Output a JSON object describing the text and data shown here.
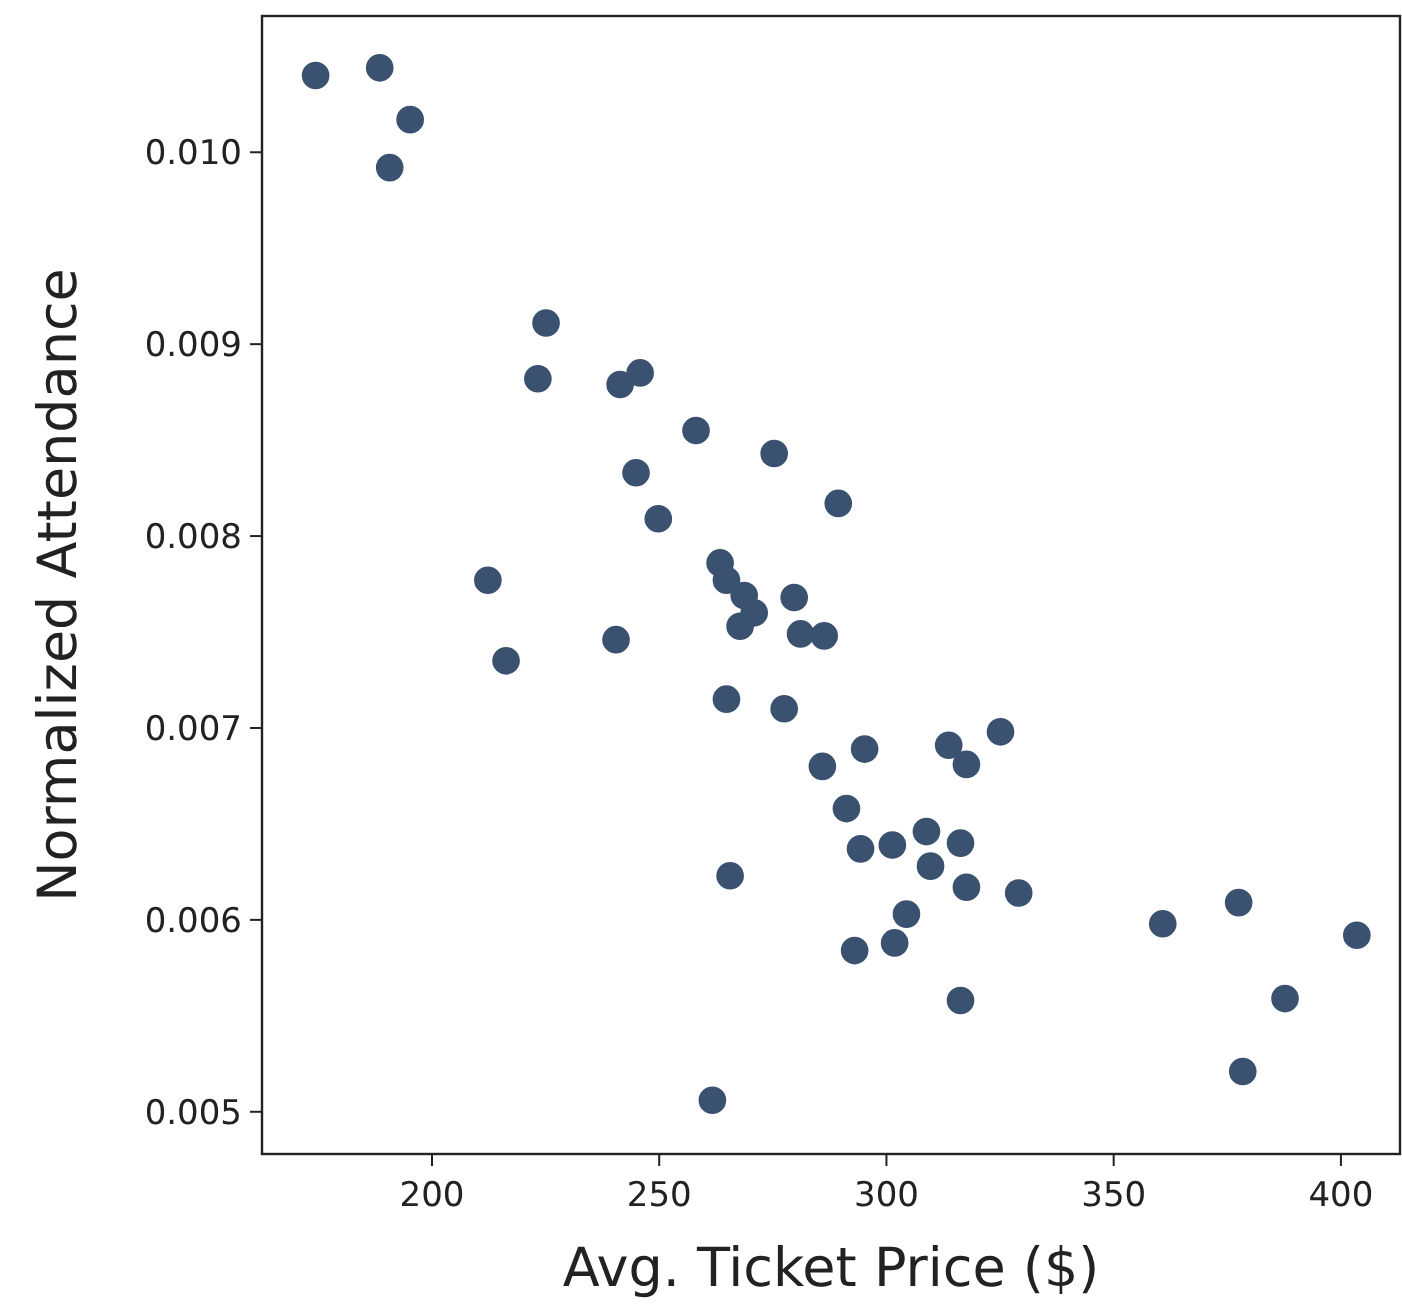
{
  "chart_data": {
    "type": "scatter",
    "xlabel": "Avg. Ticket Price ($)",
    "ylabel": "Normalized Attendance",
    "xlim": [
      162.6,
      413
    ],
    "ylim": [
      0.00478,
      0.01071
    ],
    "xticks": [
      200,
      250,
      300,
      350,
      400
    ],
    "yticks": [
      {
        "value": 0.005,
        "label": "0.005"
      },
      {
        "value": 0.006,
        "label": "0.006"
      },
      {
        "value": 0.007,
        "label": "0.007"
      },
      {
        "value": 0.008,
        "label": "0.008"
      },
      {
        "value": 0.009,
        "label": "0.009"
      },
      {
        "value": 0.01,
        "label": "0.010"
      }
    ],
    "grid": false,
    "marker": "circle",
    "series": [
      {
        "color": "#3b5170",
        "x": [
          174.4,
          188.5,
          195.2,
          190.7,
          225.1,
          223.3,
          241.4,
          245.8,
          258.1,
          244.9,
          275.3,
          249.8,
          289.4,
          212.3,
          216.3,
          240.5,
          263.4,
          264.8,
          268.7,
          270.9,
          267.8,
          279.7,
          281.1,
          286.3,
          264.8,
          277.5,
          285.9,
          295.2,
          291.2,
          294.3,
          301.3,
          308.8,
          313.7,
          317.6,
          325.1,
          309.7,
          316.3,
          317.6,
          329.1,
          304.4,
          293.0,
          301.8,
          265.6,
          316.3,
          360.8,
          377.5,
          387.7,
          403.5,
          378.4,
          261.7
        ],
        "values": [
          0.0104,
          0.01044,
          0.01017,
          0.00992,
          0.00911,
          0.00882,
          0.00879,
          0.00885,
          0.00855,
          0.00833,
          0.00843,
          0.00809,
          0.00817,
          0.00777,
          0.00735,
          0.00746,
          0.00786,
          0.00777,
          0.00769,
          0.0076,
          0.00753,
          0.00768,
          0.00749,
          0.00748,
          0.00715,
          0.0071,
          0.0068,
          0.00689,
          0.00658,
          0.00637,
          0.00639,
          0.00646,
          0.00691,
          0.00681,
          0.00698,
          0.00628,
          0.0064,
          0.00617,
          0.00614,
          0.00603,
          0.00584,
          0.00588,
          0.00623,
          0.00558,
          0.00598,
          0.00609,
          0.00559,
          0.00592,
          0.00521,
          0.00506
        ]
      }
    ]
  }
}
